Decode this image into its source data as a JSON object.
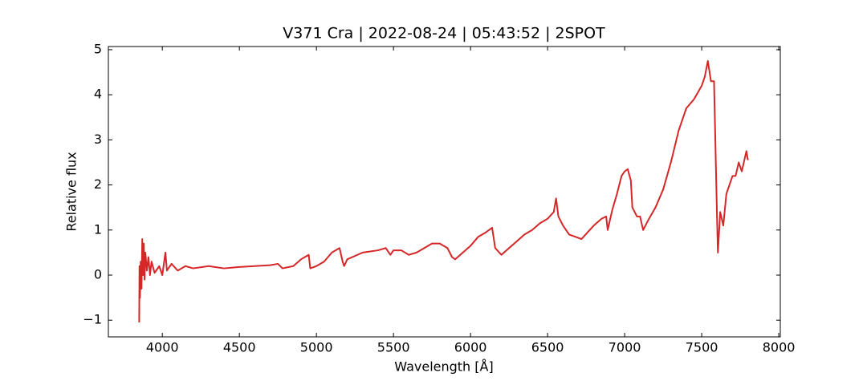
{
  "chart_data": {
    "type": "line",
    "title": "V371 Cra | 2022-08-24 | 05:43:52 | 2SPOT",
    "x_label": "Wavelength [Å]",
    "y_label": "Relative flux",
    "xlim": [
      3650,
      8010
    ],
    "ylim": [
      -1.37,
      5.07
    ],
    "xticks": [
      4000,
      4500,
      5000,
      5500,
      6000,
      6500,
      7000,
      7500,
      8000
    ],
    "yticks": [
      {
        "value": -1,
        "label": "−1"
      },
      0,
      1,
      2,
      3,
      4,
      5
    ],
    "grid": false,
    "series": [
      {
        "color": "#d62728",
        "x": [
          3850,
          3852,
          3855,
          3860,
          3865,
          3870,
          3875,
          3880,
          3885,
          3890,
          3900,
          3910,
          3920,
          3930,
          3950,
          3980,
          4000,
          4020,
          4030,
          4060,
          4100,
          4150,
          4200,
          4300,
          4400,
          4500,
          4600,
          4700,
          4750,
          4780,
          4850,
          4900,
          4950,
          4960,
          5000,
          5050,
          5100,
          5150,
          5170,
          5180,
          5200,
          5300,
          5400,
          5450,
          5480,
          5500,
          5550,
          5600,
          5650,
          5700,
          5750,
          5800,
          5850,
          5880,
          5900,
          5950,
          6000,
          6050,
          6100,
          6140,
          6160,
          6200,
          6250,
          6300,
          6350,
          6400,
          6450,
          6500,
          6540,
          6555,
          6570,
          6600,
          6640,
          6680,
          6720,
          6760,
          6800,
          6850,
          6880,
          6890,
          6920,
          6950,
          6980,
          7000,
          7020,
          7040,
          7050,
          7080,
          7100,
          7120,
          7150,
          7200,
          7250,
          7300,
          7350,
          7400,
          7450,
          7500,
          7520,
          7540,
          7560,
          7580,
          7600,
          7605,
          7620,
          7640,
          7660,
          7680,
          7700,
          7720,
          7740,
          7760,
          7780,
          7790,
          7800
        ],
        "values": [
          -1.05,
          0.2,
          -0.5,
          0.3,
          -0.3,
          0.8,
          0.0,
          0.7,
          -0.1,
          0.5,
          0.1,
          0.4,
          0.0,
          0.3,
          0.05,
          0.2,
          0.0,
          0.5,
          0.1,
          0.25,
          0.1,
          0.2,
          0.15,
          0.2,
          0.15,
          0.18,
          0.2,
          0.22,
          0.25,
          0.15,
          0.2,
          0.35,
          0.45,
          0.15,
          0.2,
          0.3,
          0.5,
          0.6,
          0.3,
          0.2,
          0.35,
          0.5,
          0.55,
          0.6,
          0.45,
          0.55,
          0.55,
          0.45,
          0.5,
          0.6,
          0.7,
          0.7,
          0.6,
          0.4,
          0.35,
          0.5,
          0.65,
          0.85,
          0.95,
          1.05,
          0.6,
          0.45,
          0.6,
          0.75,
          0.9,
          1.0,
          1.15,
          1.25,
          1.4,
          1.7,
          1.3,
          1.1,
          0.9,
          0.85,
          0.8,
          0.95,
          1.1,
          1.25,
          1.3,
          1.0,
          1.45,
          1.8,
          2.2,
          2.3,
          2.35,
          2.1,
          1.5,
          1.3,
          1.3,
          1.0,
          1.2,
          1.5,
          1.9,
          2.5,
          3.2,
          3.7,
          3.9,
          4.2,
          4.4,
          4.75,
          4.3,
          4.3,
          1.2,
          0.5,
          1.4,
          1.1,
          1.8,
          2.0,
          2.2,
          2.2,
          2.5,
          2.3,
          2.6,
          2.75,
          2.55
        ]
      }
    ]
  }
}
